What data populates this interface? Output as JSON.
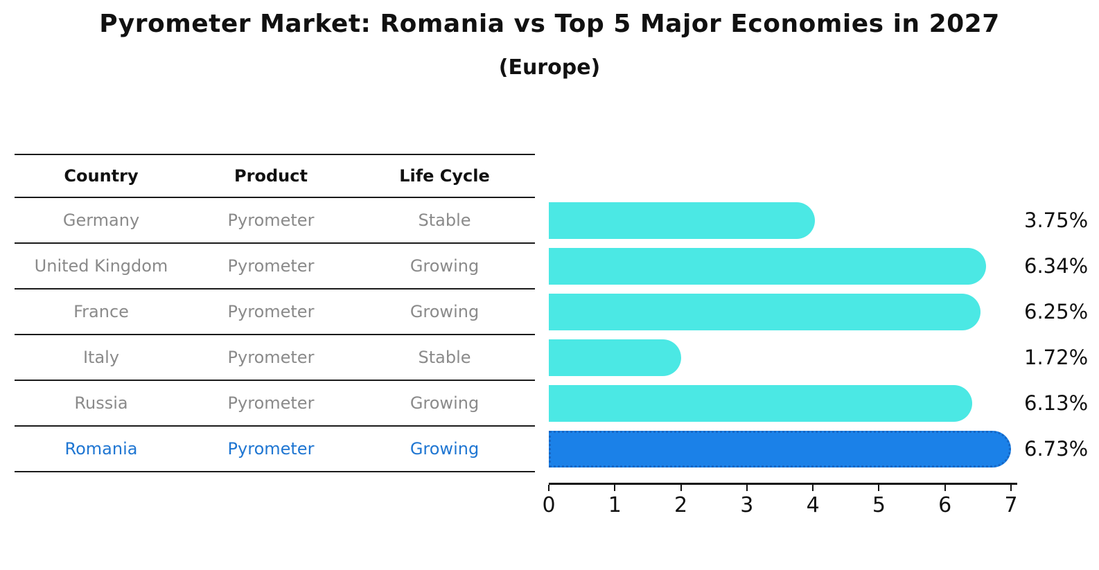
{
  "header": {
    "title": "Pyrometer Market: Romania vs Top 5 Major Economies in 2027",
    "subtitle": "(Europe)"
  },
  "table": {
    "headers": [
      "Country",
      "Product",
      "Life Cycle"
    ],
    "rows": [
      {
        "cells": [
          "Germany",
          "Pyrometer",
          "Stable"
        ],
        "highlight": false
      },
      {
        "cells": [
          "United Kingdom",
          "Pyrometer",
          "Growing"
        ],
        "highlight": false
      },
      {
        "cells": [
          "France",
          "Pyrometer",
          "Growing"
        ],
        "highlight": false
      },
      {
        "cells": [
          "Italy",
          "Pyrometer",
          "Stable"
        ],
        "highlight": false
      },
      {
        "cells": [
          "Russia",
          "Pyrometer",
          "Growing"
        ],
        "highlight": false
      },
      {
        "cells": [
          "Romania",
          "Pyrometer",
          "Growing"
        ],
        "highlight": true
      }
    ],
    "text_color": "#8a8a8a",
    "highlight_text_color": "#1F76D2",
    "line_color": "#1a1a1a"
  },
  "chart_data": {
    "type": "bar",
    "orientation": "horizontal",
    "title": "Pyrometer Market: Romania vs Top 5 Major Economies in 2027",
    "subtitle": "(Europe)",
    "categories": [
      "Germany",
      "United Kingdom",
      "France",
      "Italy",
      "Russia",
      "Romania"
    ],
    "values": [
      3.75,
      6.34,
      6.25,
      1.72,
      6.13,
      6.73
    ],
    "labels": [
      "3.75%",
      "6.34%",
      "6.25%",
      "1.72%",
      "6.13%",
      "6.73%"
    ],
    "xlim": [
      0,
      7
    ],
    "x_ticks": [
      0,
      1,
      2,
      3,
      4,
      5,
      6,
      7
    ],
    "xlabel": "",
    "ylabel": "",
    "grid": false,
    "legend": false,
    "bar_color": "#4BE8E4",
    "highlight_index": 5,
    "highlight_color": "#1B81E8",
    "highlight_border_color": "#1566C4"
  }
}
